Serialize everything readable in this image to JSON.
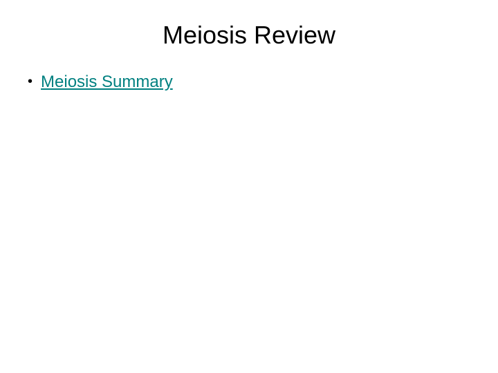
{
  "slide": {
    "title": "Meiosis Review",
    "title_fontsize": 36,
    "title_color": "#000000",
    "background_color": "#ffffff",
    "bullets": [
      {
        "text": "Meiosis Summary",
        "is_link": true,
        "link_color": "#008080"
      }
    ],
    "bullet_fontsize": 24,
    "bullet_marker": "•"
  }
}
